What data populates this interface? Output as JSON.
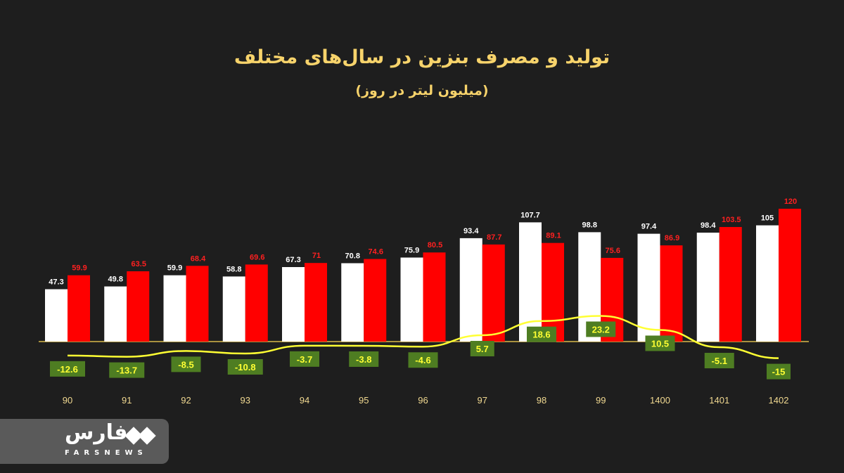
{
  "chart_data": {
    "type": "bar",
    "title": "تولید و مصرف بنزین در سال‌های مختلف",
    "subtitle": "(میلیون لیتر در روز)",
    "categories": [
      "90",
      "91",
      "92",
      "93",
      "94",
      "95",
      "96",
      "97",
      "98",
      "99",
      "1400",
      "1401",
      "1402"
    ],
    "series": [
      {
        "type": "bar",
        "color": "#ffffff",
        "values": [
          47.3,
          49.8,
          59.9,
          58.8,
          67.3,
          70.8,
          75.9,
          93.4,
          107.7,
          98.8,
          97.4,
          98.4,
          105
        ]
      },
      {
        "type": "bar",
        "color": "#ff0000",
        "values": [
          59.9,
          63.5,
          68.4,
          69.6,
          71,
          74.6,
          80.5,
          87.7,
          89.1,
          75.6,
          86.9,
          103.5,
          120
        ]
      },
      {
        "type": "line",
        "color": "#ffff33",
        "label_bg": "#4e7d22",
        "values": [
          -12.6,
          -13.7,
          -8.5,
          -10.8,
          -3.7,
          -3.8,
          -4.6,
          5.7,
          18.6,
          23.2,
          10.5,
          -5.1,
          -15
        ]
      }
    ],
    "legend": "none",
    "grid": false
  },
  "logo": {
    "text_fa": "فارس",
    "text_en": "FARSNEWS"
  }
}
